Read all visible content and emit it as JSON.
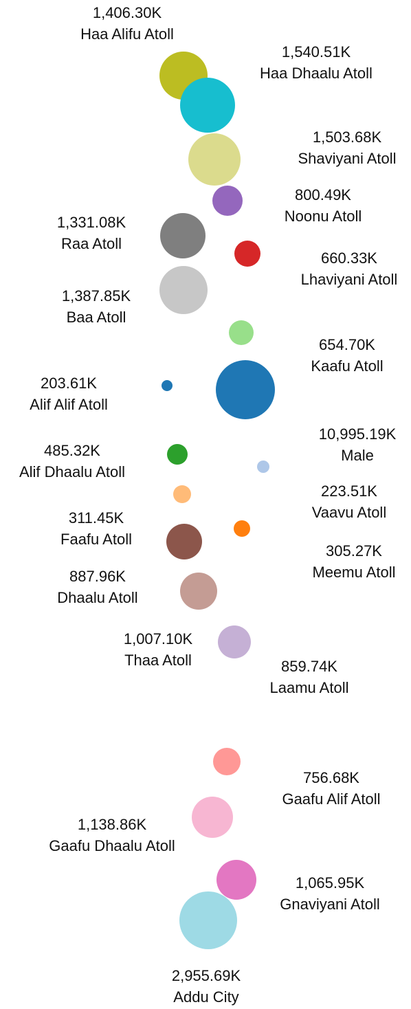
{
  "chart_data": {
    "type": "bubble",
    "categories": [
      "Haa Alifu Atoll",
      "Haa Dhaalu Atoll",
      "Shaviyani Atoll",
      "Noonu Atoll",
      "Raa Atoll",
      "Lhaviyani Atoll",
      "Baa Atoll",
      "Kaafu Atoll",
      "Alif Alif Atoll",
      "Male",
      "Alif Dhaalu Atoll",
      "Vaavu Atoll",
      "Faafu Atoll",
      "Meemu Atoll",
      "Dhaalu Atoll",
      "Thaa Atoll",
      "Laamu Atoll",
      "Gaafu Alif Atoll",
      "Gaafu Dhaalu Atoll",
      "Gnaviyani Atoll",
      "Addu City"
    ],
    "values": [
      1406.3,
      1540.51,
      1503.68,
      800.49,
      1331.08,
      660.33,
      1387.85,
      654.7,
      203.61,
      10995.19,
      485.32,
      223.51,
      311.45,
      305.27,
      887.96,
      1007.1,
      859.74,
      756.68,
      1138.86,
      1065.95,
      2955.69
    ],
    "value_labels": [
      "1,406.30K",
      "1,540.51K",
      "1,503.68K",
      "800.49K",
      "1,331.08K",
      "660.33K",
      "1,387.85K",
      "654.70K",
      "203.61K",
      "10,995.19K",
      "485.32K",
      "223.51K",
      "311.45K",
      "305.27K",
      "887.96K",
      "1,007.10K",
      "859.74K",
      "756.68K",
      "1,138.86K",
      "1,065.95K",
      "2,955.69K"
    ],
    "colors": [
      "#bcbd22",
      "#17becf",
      "#dbdb8d",
      "#9467bd",
      "#7f7f7f",
      "#d62728",
      "#c7c7c7",
      "#98df8a",
      "#1f77b4",
      "#1f77b4",
      "#2ca02c",
      "#aec7e8",
      "#ffbb78",
      "#ff7f0e",
      "#8c564b",
      "#c49c94",
      "#c5b0d5",
      "#ff9896",
      "#f7b6d2",
      "#e377c2",
      "#9edae5"
    ]
  }
}
